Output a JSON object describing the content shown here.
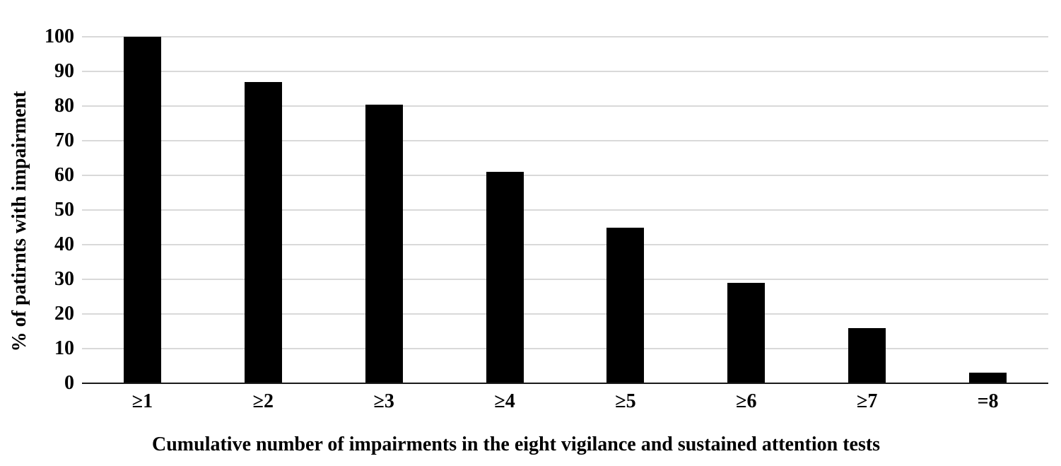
{
  "chart_data": {
    "type": "bar",
    "title": "",
    "categories": [
      "≥1",
      "≥2",
      "≥3",
      "≥4",
      "≥5",
      "≥6",
      "≥7",
      "=8"
    ],
    "values": [
      100,
      87,
      80.5,
      61,
      45,
      29,
      16,
      3
    ],
    "series_name": "% of patients with impairment",
    "xlabel": "Cumulative number of impairments in the eight vigilance and sustained attention tests",
    "ylabel": "% of patirnts with impairment",
    "ylim": [
      0,
      100
    ],
    "y_ticks": [
      0,
      10,
      20,
      30,
      40,
      50,
      60,
      70,
      80,
      90,
      100
    ],
    "grid": "horizontal",
    "legend_position": "none",
    "colors": {
      "bar": "#000000",
      "gridline": "#d9d9d9",
      "axis_line": "#1a1a1a",
      "text": "#000000",
      "background": "#ffffff"
    }
  }
}
